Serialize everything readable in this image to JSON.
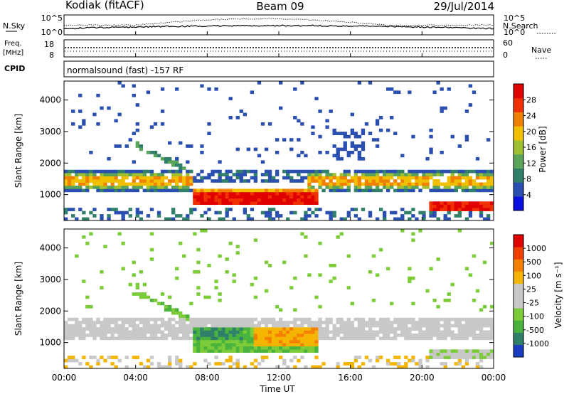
{
  "header": {
    "station": "Kodiak (fitACF)",
    "beam": "Beam 09",
    "date": "29/Jul/2014"
  },
  "noise_panel": {
    "left_label": "N.Sky",
    "right_label": "N.Search",
    "left_ticks": [
      "10^5",
      "10^0"
    ],
    "right_ticks": [
      "10^5",
      "10^0"
    ]
  },
  "freq_panel": {
    "left_label_1": "Freq.",
    "left_label_2": "[MHz]",
    "right_label": "Nave",
    "left_ticks": [
      "18",
      "8"
    ],
    "right_ticks": [
      "60",
      "0"
    ]
  },
  "cpid": {
    "label": "CPID",
    "text": "normalsound (fast) -157 RF"
  },
  "chart_data": [
    {
      "type": "heatmap",
      "name": "Power",
      "ylabel": "Slant Range [km]",
      "yticks": [
        1000,
        2000,
        3000,
        4000
      ],
      "ylim": [
        180,
        4600
      ],
      "xlim_hours": [
        0,
        24
      ],
      "colorbar": {
        "label": "Power [dB]",
        "ticks": [
          "4",
          "8",
          "12",
          "16",
          "20",
          "24",
          "28"
        ],
        "colors": [
          "#0a10e0",
          "#2a4fb0",
          "#2f7f6a",
          "#5aa45a",
          "#a0c030",
          "#f0c000",
          "#f08000",
          "#f03000",
          "#e00000"
        ]
      }
    },
    {
      "type": "heatmap",
      "name": "Velocity",
      "ylabel": "Slant Range [km]",
      "yticks": [
        1000,
        2000,
        3000,
        4000
      ],
      "ylim": [
        180,
        4600
      ],
      "xlim_hours": [
        0,
        24
      ],
      "colorbar": {
        "label": "Velocity [m s⁻¹]",
        "ticks": [
          "1000",
          "500",
          "100",
          "25",
          "-25",
          "-100",
          "-500",
          "-1000"
        ],
        "colors": [
          "#1a3cc0",
          "#2f7f6a",
          "#49b33d",
          "#7ccc3a",
          "#c8c8c8",
          "#c8c8c8",
          "#f4b400",
          "#f48000",
          "#f04000",
          "#e00000"
        ]
      }
    }
  ],
  "xaxis": {
    "ticks": [
      "00:00",
      "04:00",
      "08:00",
      "12:00",
      "16:00",
      "20:00",
      "00:00"
    ],
    "label": "Time UT"
  }
}
